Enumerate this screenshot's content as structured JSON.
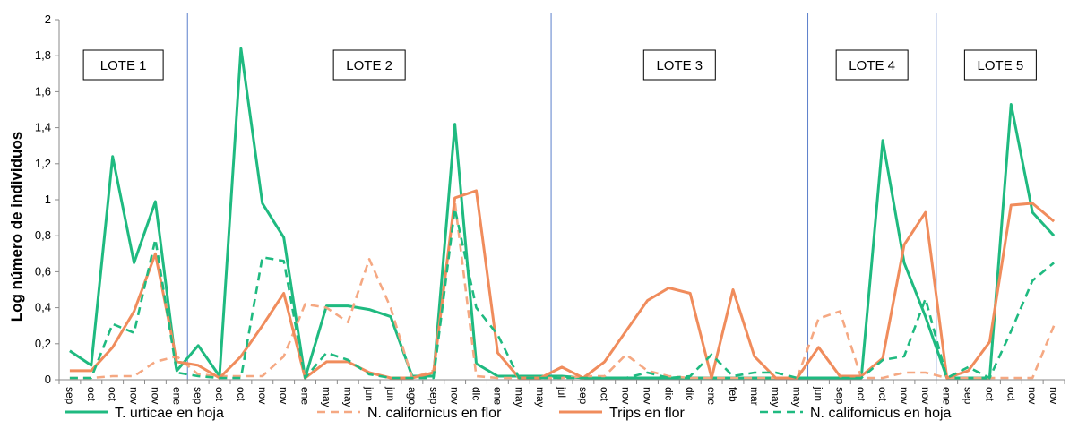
{
  "chart_data": {
    "type": "line",
    "ylabel": "Log número de individuos",
    "ylim": [
      0,
      2
    ],
    "yticks": [
      "0",
      "0,2",
      "0,4",
      "0,6",
      "0,8",
      "1",
      "1,2",
      "1,4",
      "1,6",
      "1,8",
      "2"
    ],
    "categories": [
      "sep",
      "oct",
      "oct",
      "nov",
      "nov",
      "ene",
      "sep",
      "oct",
      "oct",
      "nov",
      "nov",
      "ene",
      "may",
      "may",
      "jun",
      "jun",
      "ago",
      "sep",
      "nov",
      "dic",
      "ene",
      "may",
      "may",
      "jul",
      "sep",
      "oct",
      "nov",
      "nov",
      "dic",
      "dic",
      "ene",
      "feb",
      "mar",
      "may",
      "may",
      "jun",
      "sep",
      "oct",
      "oct",
      "nov",
      "nov",
      "ene",
      "sep",
      "oct",
      "oct",
      "nov",
      "nov"
    ],
    "lotes": [
      {
        "label": "LOTE  1",
        "start": 0
      },
      {
        "label": "LOTE 2",
        "start": 6
      },
      {
        "label": "LOTE 3",
        "start": 23
      },
      {
        "label": "LOTE 4",
        "start": 35
      },
      {
        "label": "LOTE 5",
        "start": 41
      }
    ],
    "series": [
      {
        "name": "T. urticae  en hoja",
        "color": "#1fba80",
        "style": "solid",
        "values": [
          0.16,
          0.08,
          1.24,
          0.65,
          0.99,
          0.05,
          0.19,
          0.02,
          1.84,
          0.98,
          0.79,
          0.01,
          0.41,
          0.41,
          0.39,
          0.35,
          0.02,
          0.02,
          1.42,
          0.09,
          0.02,
          0.02,
          0.02,
          0.02,
          0.01,
          0.01,
          0.01,
          0.01,
          0.01,
          0.01,
          0.01,
          0.01,
          0.01,
          0.01,
          0.01,
          0.01,
          0.01,
          0.01,
          1.33,
          0.65,
          0.35,
          0.01,
          0.01,
          0.01,
          1.53,
          0.93,
          0.8
        ]
      },
      {
        "name": "N. californicus  en flor",
        "color": "#f5a882",
        "style": "dashed",
        "values": [
          0.01,
          0.01,
          0.02,
          0.02,
          0.1,
          0.13,
          0.03,
          0.02,
          0.02,
          0.02,
          0.13,
          0.42,
          0.4,
          0.32,
          0.67,
          0.4,
          0.01,
          0.05,
          0.99,
          0.02,
          0.01,
          0.01,
          0.01,
          0.01,
          0.02,
          0.02,
          0.14,
          0.05,
          0.02,
          0.01,
          0.01,
          0.01,
          0.01,
          0.01,
          0.01,
          0.34,
          0.38,
          0.01,
          0.01,
          0.04,
          0.04,
          0.01,
          0.01,
          0.01,
          0.01,
          0.01,
          0.3
        ]
      },
      {
        "name": "Trips en flor",
        "color": "#f08c5c",
        "style": "solid",
        "values": [
          0.05,
          0.05,
          0.18,
          0.38,
          0.7,
          0.1,
          0.08,
          0.01,
          0.13,
          0.3,
          0.48,
          0.01,
          0.1,
          0.1,
          0.04,
          0.01,
          0.01,
          0.04,
          1.01,
          1.05,
          0.15,
          0.01,
          0.01,
          0.07,
          0.01,
          0.1,
          0.27,
          0.44,
          0.51,
          0.48,
          0.01,
          0.5,
          0.13,
          0.01,
          0.01,
          0.18,
          0.02,
          0.02,
          0.12,
          0.75,
          0.93,
          0.01,
          0.05,
          0.21,
          0.97,
          0.98,
          0.88
        ]
      },
      {
        "name": "N. californicus  en hoja",
        "color": "#1fba80",
        "style": "dashed",
        "values": [
          0.01,
          0.01,
          0.31,
          0.26,
          0.78,
          0.04,
          0.02,
          0.01,
          0.01,
          0.68,
          0.66,
          0.01,
          0.15,
          0.11,
          0.03,
          0.01,
          0.01,
          0.01,
          0.95,
          0.4,
          0.25,
          0.01,
          0.01,
          0.01,
          0.01,
          0.01,
          0.01,
          0.04,
          0.01,
          0.02,
          0.14,
          0.02,
          0.04,
          0.04,
          0.01,
          0.01,
          0.01,
          0.01,
          0.11,
          0.13,
          0.45,
          0.01,
          0.07,
          0.01,
          0.27,
          0.55,
          0.65
        ]
      }
    ],
    "legend_position": "bottom",
    "grid": false
  }
}
